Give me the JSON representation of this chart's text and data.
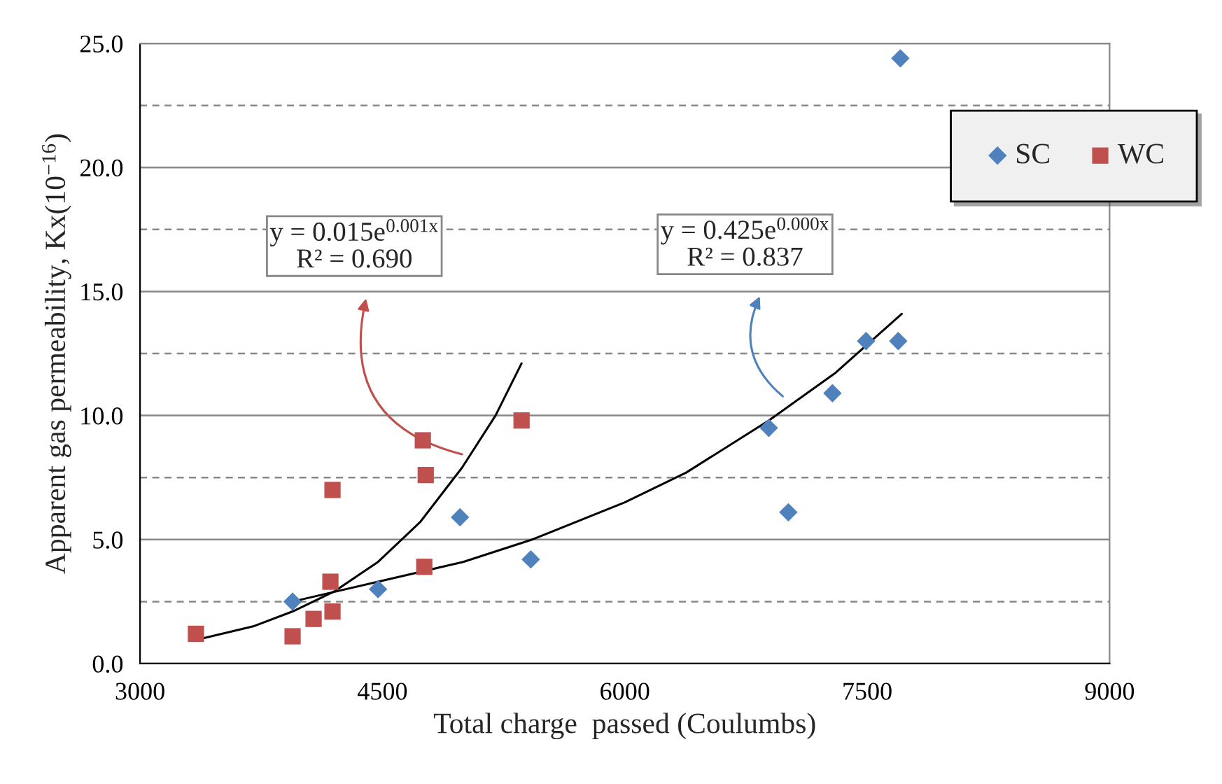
{
  "chart_data": {
    "type": "scatter",
    "xlabel": "Total charge  passed (Coulumbs)",
    "ylabel": "Apparent gas permeability, Kx(10$^{−16}$)",
    "xlim": [
      3000,
      9000
    ],
    "xticks": [
      3000,
      4500,
      6000,
      7500,
      9000
    ],
    "ylim": [
      0,
      25
    ],
    "yticks": [
      {
        "value": 0,
        "label": "0.0"
      },
      {
        "value": 2.5,
        "label": null
      },
      {
        "value": 5,
        "label": "5.0"
      },
      {
        "value": 7.5,
        "label": null
      },
      {
        "value": 10,
        "label": "10.0"
      },
      {
        "value": 12.5,
        "label": null
      },
      {
        "value": 15,
        "label": "15.0"
      },
      {
        "value": 17.5,
        "label": null
      },
      {
        "value": 20,
        "label": "20.0"
      },
      {
        "value": 22.5,
        "label": null
      },
      {
        "value": 25,
        "label": "25.0"
      }
    ],
    "grid": "y",
    "legend": "top right",
    "series": [
      {
        "name": "SC",
        "color": "#4f81bd",
        "marker": "diamond",
        "x": [
          3944,
          4473,
          4980,
          5418,
          6891,
          7012,
          7285,
          7493,
          7692,
          7705
        ],
        "values": [
          2.5,
          3.0,
          5.9,
          4.2,
          9.5,
          6.1,
          10.9,
          13.0,
          13.0,
          24.4
        ]
      },
      {
        "name": "WC",
        "color": "#c0504d",
        "marker": "square",
        "x": [
          3346,
          3944,
          4074,
          4191,
          4178,
          4191,
          4759,
          4768,
          4750,
          5361
        ],
        "values": [
          1.2,
          1.1,
          1.8,
          2.1,
          3.3,
          7.0,
          3.9,
          7.6,
          9.0,
          9.8
        ]
      },
      {
        "type": "line",
        "color": "#000000",
        "marker": "none",
        "x": [
          3944,
          4473,
          5000,
          5427,
          6000,
          6380,
          6891,
          7300,
          7714
        ],
        "values": [
          2.5,
          3.3,
          4.1,
          5.0,
          6.5,
          7.7,
          9.8,
          11.7,
          14.1
        ]
      },
      {
        "type": "line",
        "color": "#000000",
        "marker": "none",
        "x": [
          3346,
          3700,
          3944,
          4200,
          4473,
          4733,
          4993,
          5200,
          5361
        ],
        "values": [
          0.95,
          1.5,
          2.1,
          2.9,
          4.1,
          5.7,
          7.9,
          10.0,
          12.1
        ]
      }
    ],
    "annotations": [
      "y = 0.015e$^{0.001x}$\nR² = 0.690",
      "y = 0.425e$^{0.000x}$\nR² = 0.837"
    ]
  }
}
